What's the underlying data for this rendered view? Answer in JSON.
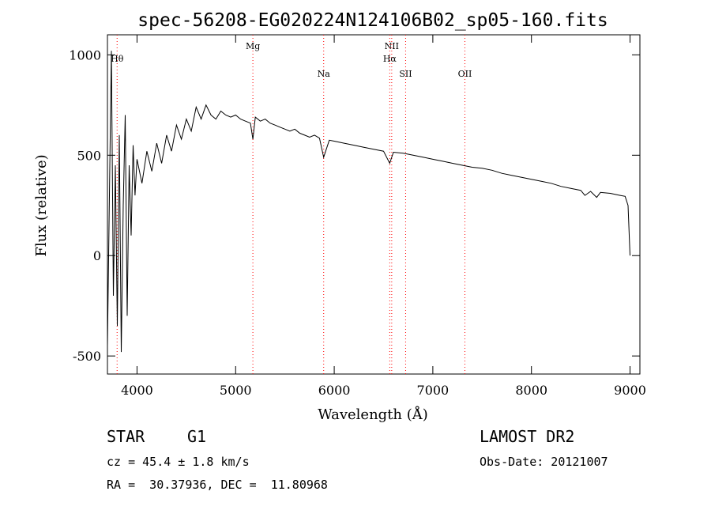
{
  "chart_data": {
    "type": "line",
    "title": "spec-56208-EG020224N124106B02_sp05-160.fits",
    "xlabel": "Wavelength (Å)",
    "ylabel": "Flux (relative)",
    "xlim": [
      3700,
      9100
    ],
    "ylim": [
      -590,
      1100
    ],
    "xticks": [
      4000,
      5000,
      6000,
      7000,
      8000,
      9000
    ],
    "yticks": [
      -500,
      0,
      500,
      1000
    ],
    "grid": false,
    "legend": "none",
    "line_color": "#000000",
    "marker_color": "#ff0000",
    "line_markers": [
      {
        "label": "Hθ",
        "x": 3798
      },
      {
        "label": "Mg",
        "x": 5175
      },
      {
        "label": "Na",
        "x": 5893
      },
      {
        "label": "NII",
        "x": 6583
      },
      {
        "label": "Hα",
        "x": 6563
      },
      {
        "label": "SII",
        "x": 6724
      },
      {
        "label": "OII",
        "x": 7325
      }
    ],
    "series": [
      {
        "x": [
          3700,
          3720,
          3740,
          3760,
          3780,
          3800,
          3820,
          3840,
          3860,
          3880,
          3900,
          3920,
          3940,
          3960,
          3980,
          4000,
          4050,
          4100,
          4150,
          4200,
          4250,
          4300,
          4350,
          4400,
          4450,
          4500,
          4550,
          4600,
          4650,
          4700,
          4750,
          4800,
          4850,
          4900,
          4950,
          5000,
          5050,
          5100,
          5150,
          5175,
          5200,
          5250,
          5300,
          5350,
          5400,
          5450,
          5500,
          5550,
          5600,
          5650,
          5700,
          5750,
          5800,
          5850,
          5893,
          5950,
          6000,
          6100,
          6200,
          6300,
          6400,
          6500,
          6563,
          6600,
          6700,
          6800,
          6900,
          7000,
          7100,
          7200,
          7300,
          7400,
          7500,
          7600,
          7700,
          7800,
          7900,
          8000,
          8100,
          8200,
          8300,
          8400,
          8500,
          8542,
          8600,
          8662,
          8700,
          8800,
          8900,
          8950,
          8980,
          9000
        ],
        "values": [
          -450,
          300,
          1020,
          -200,
          450,
          -350,
          600,
          -480,
          250,
          700,
          -300,
          450,
          100,
          550,
          300,
          480,
          360,
          520,
          420,
          560,
          460,
          600,
          520,
          650,
          580,
          680,
          620,
          740,
          680,
          750,
          700,
          680,
          720,
          700,
          690,
          700,
          680,
          670,
          660,
          580,
          690,
          670,
          680,
          660,
          650,
          640,
          630,
          620,
          630,
          610,
          600,
          590,
          600,
          585,
          490,
          575,
          570,
          560,
          550,
          540,
          530,
          520,
          460,
          515,
          510,
          500,
          490,
          480,
          470,
          460,
          450,
          440,
          435,
          425,
          410,
          400,
          390,
          380,
          370,
          360,
          345,
          335,
          325,
          300,
          320,
          290,
          315,
          310,
          300,
          295,
          250,
          0
        ]
      }
    ]
  },
  "footer": {
    "object_type": "STAR",
    "subclass": "G1",
    "survey": "LAMOST DR2",
    "cz": "cz = 45.4 ± 1.8 km/s",
    "obs_date": "Obs-Date: 20121007",
    "coords": "RA =  30.37936, DEC =  11.80968"
  }
}
